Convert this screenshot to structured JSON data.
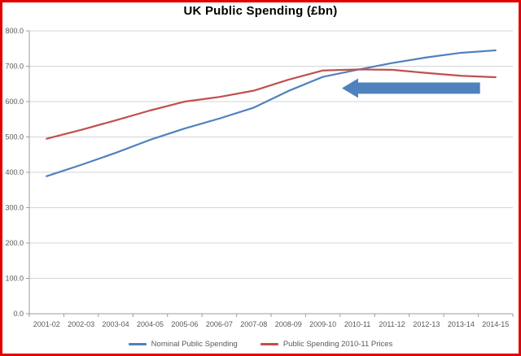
{
  "frame": {
    "border_color": "#e40000",
    "background_color": "#ffffff"
  },
  "chart_data": {
    "type": "line",
    "title": "UK Public Spending (£bn)",
    "categories": [
      "2001-02",
      "2002-03",
      "2003-04",
      "2004-05",
      "2005-06",
      "2006-07",
      "2007-08",
      "2008-09",
      "2009-10",
      "2010-11",
      "2011-12",
      "2012-13",
      "2013-14",
      "2014-15"
    ],
    "series": [
      {
        "name": "Nominal Public Spending",
        "color": "#4F81BD",
        "values": [
          389,
          421,
          455,
          492,
          524,
          552,
          583,
          630,
          670,
          690,
          709,
          725,
          738,
          745
        ]
      },
      {
        "name": "Public Spending 2010-11 Prices",
        "color": "#C0504D",
        "values": [
          495,
          520,
          547,
          575,
          600,
          613,
          631,
          662,
          688,
          691,
          690,
          681,
          673,
          669
        ]
      }
    ],
    "xlabel": "",
    "ylabel": "",
    "ylim": [
      0,
      800
    ],
    "ytick_step": 100,
    "ytick_labels": [
      "0.0",
      "100.0",
      "200.0",
      "300.0",
      "400.0",
      "500.0",
      "600.0",
      "700.0",
      "800.0"
    ],
    "grid": true,
    "legend_position": "bottom",
    "axis_color": "#9c9c9c",
    "gridline_color": "#d6d6d6",
    "tick_label_color": "#595959",
    "annotation": {
      "shape": "arrow-left",
      "color": "#4F81BD",
      "tip_category_index": 8.55,
      "tail_category_index": 12.55,
      "value_center": 638,
      "head_height_value": 55,
      "body_height_value": 32,
      "head_length_categories": 0.47
    }
  }
}
